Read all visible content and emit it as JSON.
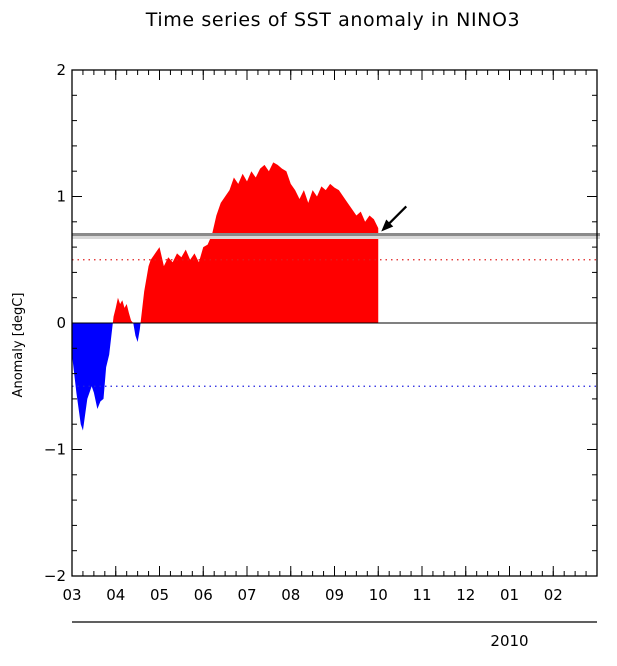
{
  "chart_data": {
    "type": "area",
    "title": "Time series of SST anomaly in NINO3",
    "xlabel": "",
    "ylabel": "Anomaly [degC]",
    "ylim": [
      -2,
      2
    ],
    "y_ticks": [
      "2",
      "1",
      "0",
      "−1",
      "−2"
    ],
    "y_tick_values": [
      2,
      1,
      0,
      -1,
      -2
    ],
    "x_range": [
      3,
      15
    ],
    "x_ticks": [
      "03",
      "04",
      "05",
      "06",
      "07",
      "08",
      "09",
      "10",
      "11",
      "12",
      "01",
      "02"
    ],
    "x_tick_values": [
      3,
      4,
      5,
      6,
      7,
      8,
      9,
      10,
      11,
      12,
      13,
      14
    ],
    "year_label": "2010",
    "year_label_at": 13,
    "threshold_upper": 0.5,
    "threshold_lower": -0.5,
    "reference_line": 0.7,
    "positive_color": "#ff0000",
    "negative_color": "#0000ff",
    "series": [
      {
        "x": [
          3.0,
          3.1,
          3.2,
          3.25,
          3.35,
          3.45,
          3.5,
          3.58,
          3.65,
          3.72,
          3.78,
          3.85,
          3.9,
          3.95,
          4.0,
          4.05,
          4.1,
          4.15,
          4.2,
          4.25,
          4.3,
          4.35,
          4.4,
          4.45,
          4.5,
          4.55,
          4.6,
          4.65,
          4.7,
          4.75,
          4.8,
          4.9,
          5.0,
          5.1,
          5.2,
          5.3,
          5.4,
          5.5,
          5.6,
          5.7,
          5.8,
          5.9,
          6.0,
          6.1,
          6.2,
          6.3,
          6.4,
          6.5,
          6.6,
          6.7,
          6.8,
          6.9,
          7.0,
          7.1,
          7.2,
          7.3,
          7.4,
          7.5,
          7.6,
          7.7,
          7.8,
          7.9,
          8.0,
          8.1,
          8.2,
          8.3,
          8.4,
          8.5,
          8.6,
          8.7,
          8.8,
          8.9,
          9.0,
          9.1,
          9.2,
          9.3,
          9.4,
          9.5,
          9.6,
          9.7,
          9.8,
          9.9,
          10.0
        ],
        "y": [
          -0.25,
          -0.55,
          -0.8,
          -0.85,
          -0.6,
          -0.5,
          -0.55,
          -0.68,
          -0.62,
          -0.6,
          -0.35,
          -0.25,
          -0.1,
          0.05,
          0.12,
          0.2,
          0.15,
          0.18,
          0.12,
          0.15,
          0.08,
          0.02,
          0.0,
          -0.1,
          -0.15,
          -0.05,
          0.1,
          0.25,
          0.35,
          0.45,
          0.5,
          0.55,
          0.6,
          0.45,
          0.52,
          0.48,
          0.55,
          0.52,
          0.58,
          0.5,
          0.55,
          0.48,
          0.6,
          0.62,
          0.7,
          0.85,
          0.95,
          1.0,
          1.05,
          1.15,
          1.1,
          1.18,
          1.12,
          1.2,
          1.15,
          1.22,
          1.25,
          1.2,
          1.27,
          1.25,
          1.22,
          1.2,
          1.1,
          1.05,
          0.98,
          1.05,
          0.95,
          1.05,
          1.0,
          1.08,
          1.05,
          1.1,
          1.07,
          1.05,
          1.0,
          0.95,
          0.9,
          0.85,
          0.88,
          0.8,
          0.85,
          0.82,
          0.75
        ]
      }
    ]
  }
}
